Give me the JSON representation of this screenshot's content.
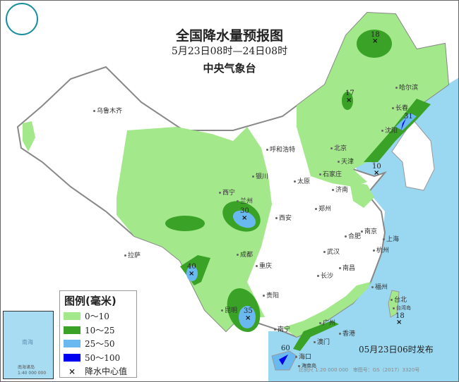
{
  "title": "全国降水量预报图",
  "period": "5月23日08时—24日08时",
  "agency": "中央气象台",
  "issued": "05月23日06时发布",
  "scale": "比例尺 1:20 000 000",
  "map_approval": "审图号：GS（2017）3320号",
  "logo_icon": "cma-logo-icon",
  "legend": {
    "title": "图例(毫米)",
    "items": [
      {
        "label": "0～10",
        "color": "#a3e88a"
      },
      {
        "label": "10～25",
        "color": "#3aa327"
      },
      {
        "label": "25～50",
        "color": "#6ab8f0"
      },
      {
        "label": "50～100",
        "color": "#0000f0"
      }
    ],
    "center_label": "降水中心值",
    "center_symbol": "×"
  },
  "colors": {
    "sea": "#9ad8f2",
    "land": "#ffffff",
    "border": "#888888"
  },
  "cities": [
    "乌鲁木齐",
    "拉萨",
    "西宁",
    "兰州",
    "银川",
    "呼和浩特",
    "北京",
    "天津",
    "石家庄",
    "太原",
    "济南",
    "郑州",
    "西安",
    "成都",
    "重庆",
    "贵阳",
    "昆明",
    "南宁",
    "广州",
    "香港",
    "澳门",
    "海口",
    "长沙",
    "南昌",
    "武汉",
    "合肥",
    "南京",
    "上海",
    "杭州",
    "福州",
    "台北",
    "沈阳",
    "长春",
    "哈尔滨"
  ],
  "islands": [
    "海南岛",
    "台湾岛"
  ],
  "centers": [
    "18",
    "17",
    "31",
    "10",
    "30",
    "40",
    "35",
    "18",
    "60"
  ],
  "inset": {
    "sea_label": "南海",
    "islands": "南海诸岛",
    "scale": "1:40 000 000"
  }
}
